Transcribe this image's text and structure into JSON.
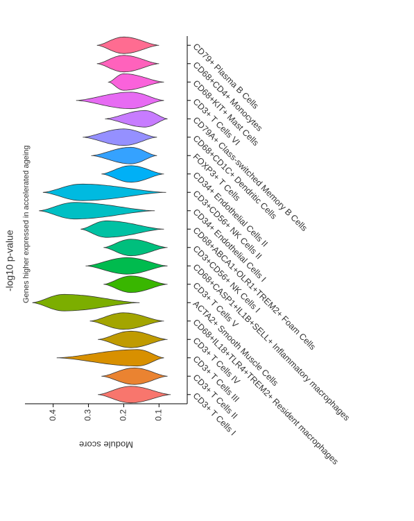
{
  "chart_data": {
    "type": "violin",
    "title": "-log10 p-value",
    "subtitle": "Genes higher expressed in accelerated ageing",
    "y_label": "Module score",
    "categories": [
      "CD3+ T Cells I",
      "CD3+ T Cells II",
      "CD3+ T Cells III",
      "CD3+ T Cells IV",
      "CD68+IL18+TLR4+TREM2+ Resident macrophages",
      "ACTA2+ Smooth Muscle Cells",
      "CD3+ T Cells V",
      "CD68+CASP1+IL1B+SELL+ Inflammatory macrophages",
      "CD3+CD56+ NK Cells I",
      "CD68+ABCA1+OLR1+TREM2+ Foam Cells",
      "CD34+ Endothelial Cells I",
      "CD3+CD56+ NK Cells II",
      "CD34+ Endothelial Cells II",
      "FOXP3+ T Cells",
      "CD68+CD1C+ Dendritic Cells",
      "CD79A+ Class-switched Memory B Cells",
      "CD3+ T Cells VI",
      "CD68+KIT+ Mast Cells",
      "CD68+CD4+ Monocytes",
      "CD79+ Plasma B Cells"
    ],
    "max": [
      0.273,
      0.263,
      0.39,
      0.273,
      0.296,
      0.459,
      0.257,
      0.308,
      0.257,
      0.322,
      0.44,
      0.429,
      0.263,
      0.292,
      0.316,
      0.253,
      0.335,
      0.243,
      0.276,
      0.276
    ],
    "min": [
      0.067,
      0.076,
      0.086,
      0.076,
      0.086,
      0.155,
      0.076,
      0.076,
      0.076,
      0.086,
      0.112,
      0.08,
      0.086,
      0.106,
      0.106,
      0.076,
      0.086,
      0.086,
      0.1,
      0.1
    ],
    "peak": [
      0.18,
      0.17,
      0.16,
      0.18,
      0.2,
      0.37,
      0.18,
      0.19,
      0.18,
      0.25,
      0.34,
      0.32,
      0.18,
      0.18,
      0.2,
      0.14,
      0.18,
      0.2,
      0.2,
      0.2
    ],
    "colors": [
      "#F8766D",
      "#EA8331",
      "#D89000",
      "#C09B00",
      "#A3A500",
      "#7CAE00",
      "#39B600",
      "#00BB4E",
      "#00BF7D",
      "#00C1A3",
      "#00BFC4",
      "#00BAE0",
      "#00B0F6",
      "#35A2FF",
      "#9590FF",
      "#C77CFF",
      "#E76BF3",
      "#FA62DB",
      "#FF62BC",
      "#FF6C91"
    ],
    "ylim": [
      0.02,
      0.48
    ],
    "yticks": [
      0.1,
      0.2,
      0.3,
      0.4
    ]
  }
}
